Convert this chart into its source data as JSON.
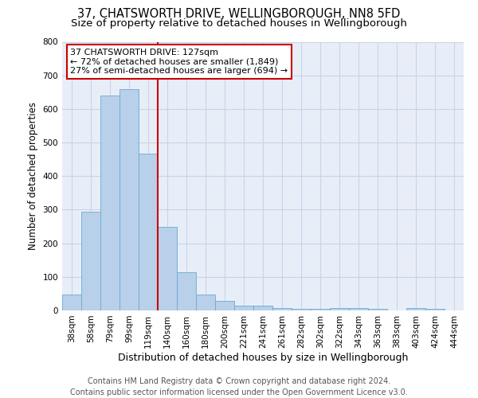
{
  "title_line1": "37, CHATSWORTH DRIVE, WELLINGBOROUGH, NN8 5FD",
  "title_line2": "Size of property relative to detached houses in Wellingborough",
  "xlabel": "Distribution of detached houses by size in Wellingborough",
  "ylabel": "Number of detached properties",
  "annotation_line1": "37 CHATSWORTH DRIVE: 127sqm",
  "annotation_line2": "← 72% of detached houses are smaller (1,849)",
  "annotation_line3": "27% of semi-detached houses are larger (694) →",
  "footer_line1": "Contains HM Land Registry data © Crown copyright and database right 2024.",
  "footer_line2": "Contains public sector information licensed under the Open Government Licence v3.0.",
  "bin_labels": [
    "38sqm",
    "58sqm",
    "79sqm",
    "99sqm",
    "119sqm",
    "140sqm",
    "160sqm",
    "180sqm",
    "200sqm",
    "221sqm",
    "241sqm",
    "261sqm",
    "282sqm",
    "302sqm",
    "322sqm",
    "343sqm",
    "363sqm",
    "383sqm",
    "403sqm",
    "424sqm",
    "444sqm"
  ],
  "bar_values": [
    47,
    293,
    640,
    660,
    467,
    250,
    113,
    47,
    28,
    15,
    14,
    8,
    5,
    5,
    7,
    6,
    5,
    1,
    7,
    5,
    1
  ],
  "bar_color": "#b8d0ea",
  "bar_edge_color": "#6aaad4",
  "red_line_x": 4.5,
  "red_line_color": "#cc0000",
  "annotation_box_color": "#ffffff",
  "annotation_box_edge": "#cc0000",
  "grid_color": "#c8d4e8",
  "bg_color": "#e8eef8",
  "ylim": [
    0,
    800
  ],
  "yticks": [
    0,
    100,
    200,
    300,
    400,
    500,
    600,
    700,
    800
  ],
  "title_fontsize": 10.5,
  "subtitle_fontsize": 9.5,
  "footer_fontsize": 7,
  "annotation_fontsize": 8,
  "ylabel_fontsize": 8.5,
  "xlabel_fontsize": 9,
  "tick_fontsize": 7.5
}
